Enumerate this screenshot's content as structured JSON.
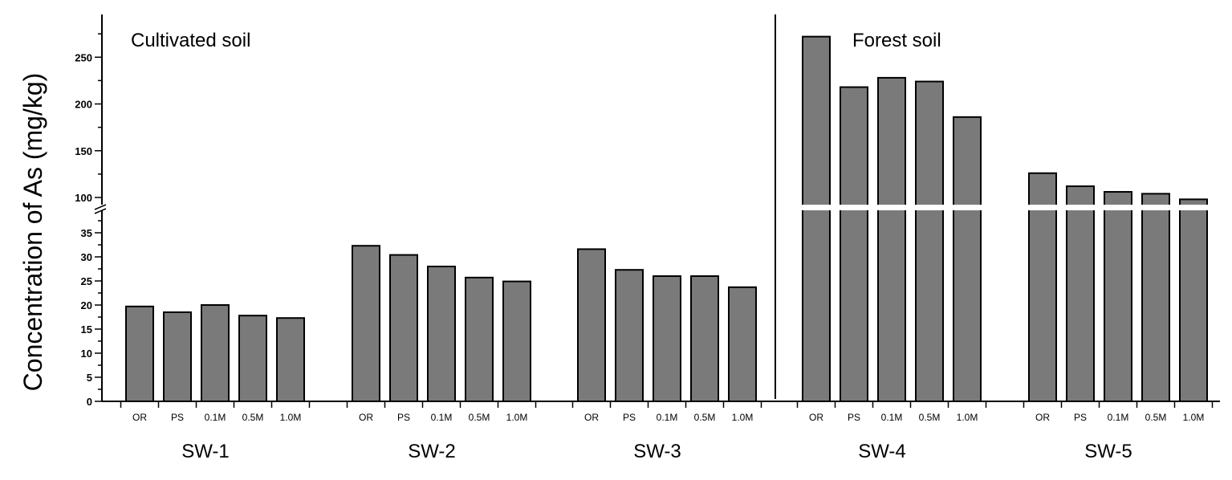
{
  "chart_data": {
    "type": "bar",
    "ylabel": "Concentration of As (mg/kg)",
    "axis_break": {
      "lower_range": [
        0,
        38
      ],
      "upper_range": [
        88,
        290
      ]
    },
    "ylim": [
      0,
      290
    ],
    "yticks_lower": [
      0,
      5,
      10,
      15,
      20,
      25,
      30,
      35
    ],
    "yticks_upper": [
      100,
      150,
      200,
      250
    ],
    "annotations": [
      "Cultivated soil",
      "Forest soil"
    ],
    "grid": false,
    "groups": [
      {
        "name": "SW-1",
        "categories": [
          "OR",
          "PS",
          "0.1M",
          "0.5M",
          "1.0M"
        ],
        "values": [
          19.7,
          18.5,
          20,
          17.8,
          17.3
        ]
      },
      {
        "name": "SW-2",
        "categories": [
          "OR",
          "PS",
          "0.1M",
          "0.5M",
          "1.0M"
        ],
        "values": [
          32.3,
          30.4,
          28,
          25.7,
          24.9
        ]
      },
      {
        "name": "SW-3",
        "categories": [
          "OR",
          "PS",
          "0.1M",
          "0.5M",
          "1.0M"
        ],
        "values": [
          31.6,
          27.3,
          26,
          26,
          23.7
        ]
      },
      {
        "name": "SW-4",
        "categories": [
          "OR",
          "PS",
          "0.1M",
          "0.5M",
          "1.0M"
        ],
        "values": [
          272,
          218,
          228,
          224,
          186
        ]
      },
      {
        "name": "SW-5",
        "categories": [
          "OR",
          "PS",
          "0.1M",
          "0.5M",
          "1.0M"
        ],
        "values": [
          126,
          112,
          106,
          104,
          98
        ]
      }
    ]
  }
}
